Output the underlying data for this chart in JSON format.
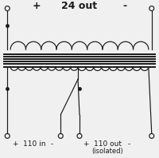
{
  "bg_color": "#f0f0f0",
  "line_color": "#1a1a1a",
  "title": "24 out",
  "label_top_plus": "+",
  "label_top_minus": "-",
  "label_bot_left": "+ 110 in -",
  "label_bot_right": "+ 110 out -",
  "label_isolated": "(isolated)",
  "font_size_title": 9,
  "font_size_label": 6.5
}
